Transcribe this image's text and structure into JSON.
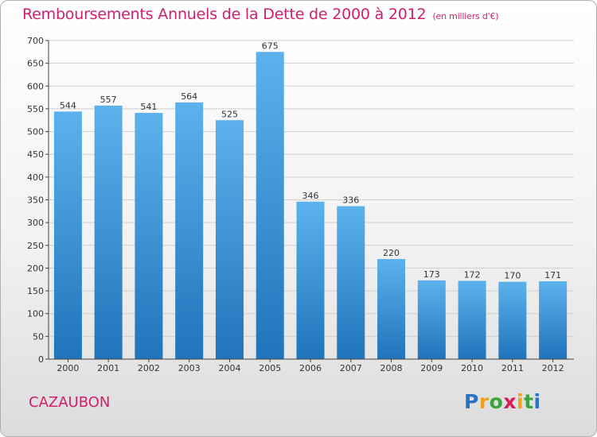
{
  "header": {
    "title": "Remboursements Annuels de la Dette de 2000 à 2012",
    "subtitle": "(en milliers d'€)"
  },
  "footer": {
    "city": "CAZAUBON",
    "logo_letters": [
      "P",
      "r",
      "o",
      "x",
      "i",
      "t",
      "i"
    ],
    "logo_colors": [
      "#2a72c8",
      "#f0a21d",
      "#3aa53b",
      "#d91c5c",
      "#f0a21d",
      "#3aa53b",
      "#2a72c8"
    ]
  },
  "colors": {
    "bar": "#3d95dc",
    "bar_light": "#5cb2ec",
    "grid": "#cfcfcf",
    "accent": "#d01f6c"
  },
  "chart_data": {
    "type": "bar",
    "title": "Remboursements Annuels de la Dette de 2000 à 2012",
    "subtitle": "(en milliers d'€)",
    "xlabel": "",
    "ylabel": "",
    "categories": [
      "2000",
      "2001",
      "2002",
      "2003",
      "2004",
      "2005",
      "2006",
      "2007",
      "2008",
      "2009",
      "2010",
      "2011",
      "2012"
    ],
    "values": [
      544,
      557,
      541,
      564,
      525,
      675,
      346,
      336,
      220,
      173,
      172,
      170,
      171
    ],
    "ylim": [
      0,
      700
    ],
    "yticks": [
      0,
      50,
      100,
      150,
      200,
      250,
      300,
      350,
      400,
      450,
      500,
      550,
      600,
      650,
      700
    ],
    "grid": true,
    "data_labels": true
  }
}
